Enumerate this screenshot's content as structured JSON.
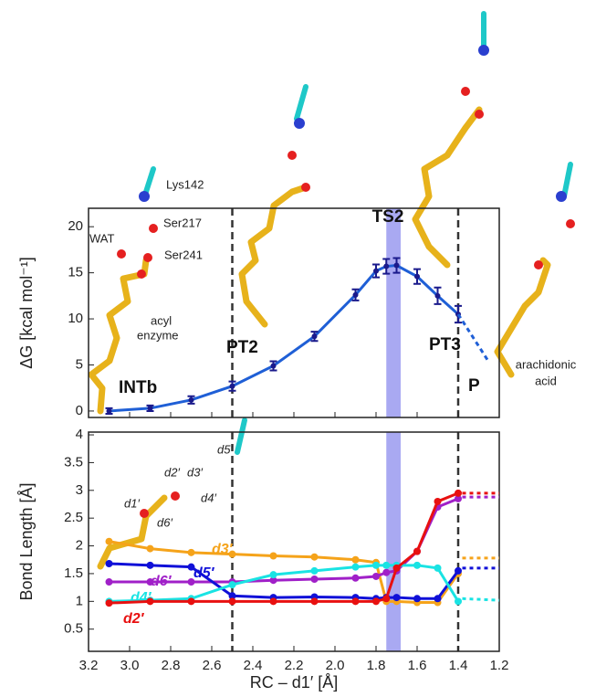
{
  "chart_data": [
    {
      "type": "line",
      "ylabel": "ΔG [kcal mol⁻¹]",
      "xlim": [
        3.2,
        1.2
      ],
      "ylim": [
        -0.7,
        22
      ],
      "yticks": [
        0,
        5,
        10,
        15,
        20
      ],
      "vlines": [
        2.5,
        1.4
      ],
      "highlight_band": [
        1.75,
        1.68
      ],
      "band_color": "#a9a9f2",
      "annotations": [
        "Lys142",
        "Ser217",
        "WAT",
        "Ser241",
        "acyl",
        "enzyme",
        "INTb",
        "PT2",
        "TS2",
        "PT3",
        "P",
        "arachidonic",
        "acid"
      ],
      "series": [
        {
          "color": "#1f5fd6",
          "marker_color": "#1a1a8c",
          "x": [
            3.1,
            2.9,
            2.7,
            2.5,
            2.3,
            2.1,
            1.9,
            1.8,
            1.75,
            1.7,
            1.6,
            1.5,
            1.4
          ],
          "values": [
            0,
            0.3,
            1.2,
            2.7,
            4.9,
            8.1,
            12.6,
            15.2,
            15.7,
            15.8,
            14.6,
            12.5,
            10.5
          ],
          "errors": [
            0.3,
            0.3,
            0.4,
            0.5,
            0.5,
            0.5,
            0.6,
            0.7,
            0.8,
            0.8,
            0.8,
            0.9,
            0.9
          ]
        },
        {
          "color": "#1f5fd6",
          "style": "dashed",
          "x": [
            1.4,
            1.25
          ],
          "values": [
            10.5,
            5.3
          ]
        }
      ]
    },
    {
      "type": "line",
      "ylabel": "Bond Length [Å]",
      "xlabel": "RC – d1′ [Å]",
      "xlim": [
        3.2,
        1.2
      ],
      "ylim": [
        0.1,
        4.05
      ],
      "xticks": [
        3.2,
        {
          "value": 3,
          "label": "3.0"
        },
        2.8,
        2.6,
        2.4,
        2.2,
        {
          "value": 2,
          "label": "2.0"
        },
        1.8,
        1.6,
        1.4,
        1.2
      ],
      "yticks": [
        0.5,
        1,
        1.5,
        2,
        2.5,
        3,
        3.5,
        4
      ],
      "vlines": [
        2.5,
        1.4
      ],
      "highlight_band": [
        1.75,
        1.68
      ],
      "band_color": "#a9a9f2",
      "annotations": [
        "d5′",
        "d2′",
        "d3′",
        "d4′",
        "d1′",
        "d6′"
      ],
      "x": [
        3.1,
        2.9,
        2.7,
        2.5,
        2.3,
        2.1,
        1.9,
        1.8,
        1.75,
        1.7,
        1.6,
        1.5,
        1.4
      ],
      "dotted_x": [
        1.38,
        1.2
      ],
      "series": [
        {
          "name": "d3′",
          "color": "#f5a31a",
          "values": [
            2.08,
            1.95,
            1.88,
            1.85,
            1.82,
            1.8,
            1.75,
            1.7,
            1.0,
            1.0,
            0.98,
            0.98,
            1.5
          ],
          "dotted_values": [
            1.78,
            1.78
          ]
        },
        {
          "name": "d6′",
          "color": "#a020c8",
          "values": [
            1.35,
            1.35,
            1.35,
            1.35,
            1.38,
            1.4,
            1.42,
            1.45,
            1.52,
            1.55,
            1.9,
            2.7,
            2.85
          ],
          "dotted_values": [
            2.88,
            2.88
          ]
        },
        {
          "name": "d5′",
          "color": "#1010d8",
          "values": [
            1.68,
            1.65,
            1.62,
            1.1,
            1.07,
            1.08,
            1.07,
            1.05,
            1.07,
            1.07,
            1.05,
            1.05,
            1.55
          ],
          "dotted_values": [
            1.6,
            1.6
          ]
        },
        {
          "name": "d4′",
          "color": "#19e3e3",
          "values": [
            1.0,
            1.02,
            1.05,
            1.3,
            1.48,
            1.55,
            1.62,
            1.65,
            1.65,
            1.65,
            1.65,
            1.6,
            1.0
          ],
          "dotted_values": [
            1.05,
            1.02
          ]
        },
        {
          "name": "d2′",
          "color": "#e81010",
          "values": [
            0.97,
            1.0,
            1.0,
            1.0,
            1.0,
            1.0,
            1.0,
            1.0,
            1.05,
            1.6,
            1.9,
            2.8,
            2.95
          ],
          "dotted_values": [
            2.95,
            2.95
          ]
        }
      ]
    }
  ]
}
